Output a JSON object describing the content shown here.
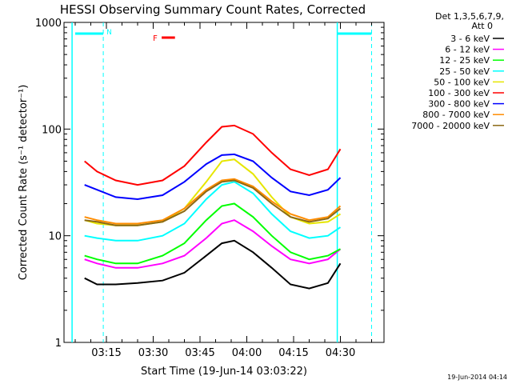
{
  "colors": {
    "background": "#ffffff",
    "axis": "#000000",
    "cyan": "#00ffff"
  },
  "chart_data": {
    "type": "line",
    "title": "HESSI Observing Summary Count Rates, Corrected",
    "xlabel": "Start Time (19-Jun-14 03:03:22)",
    "ylabel": "Corrected Count Rate (s⁻¹ detector⁻¹)",
    "yscale": "log",
    "ylim": [
      1,
      1000
    ],
    "xlim_minutes": [
      3.05,
      4.74
    ],
    "x_unit": "time of day (h:mm, expressed in minutes from 03:03:22 for data)",
    "x_ticks": [
      "03:15",
      "03:30",
      "03:45",
      "04:00",
      "04:15",
      "04:30"
    ],
    "y_ticks": [
      "1",
      "10",
      "100",
      "1000"
    ],
    "legend_header": [
      "Det 1,3,5,6,7,9,",
      "Att 0"
    ],
    "legend_position": "right",
    "timestamp": "19-Jun-2014 04:14",
    "markers": {
      "night_label": "N",
      "flare_label": "F",
      "night_bars": [
        {
          "start": "03:05",
          "end": "03:14",
          "dashed_at": "03:14"
        },
        {
          "start": "04:29",
          "end": "04:40",
          "dashed_at": "04:40"
        }
      ],
      "solid_boundaries": [
        "03:04",
        "04:29"
      ],
      "flare_marker": {
        "start": "03:34",
        "end": "03:38"
      }
    },
    "series": [
      {
        "name": "3 - 6 keV",
        "color": "#000000",
        "x": [
          "03:08",
          "03:12",
          "03:18",
          "03:25",
          "03:33",
          "03:40",
          "03:47",
          "03:52",
          "03:56",
          "04:02",
          "04:08",
          "04:14",
          "04:20",
          "04:26",
          "04:30"
        ],
        "values": [
          4,
          3.5,
          3.5,
          3.6,
          3.8,
          4.5,
          6.5,
          8.5,
          9,
          7,
          5,
          3.5,
          3.2,
          3.6,
          5.5
        ]
      },
      {
        "name": "6 - 12 keV",
        "color": "#ff00ff",
        "x": [
          "03:08",
          "03:12",
          "03:18",
          "03:25",
          "03:33",
          "03:40",
          "03:47",
          "03:52",
          "03:56",
          "04:02",
          "04:08",
          "04:14",
          "04:20",
          "04:26",
          "04:30"
        ],
        "values": [
          6,
          5.5,
          5,
          5,
          5.5,
          6.5,
          9.5,
          13,
          14,
          11,
          8,
          6,
          5.5,
          6,
          7.5
        ]
      },
      {
        "name": "12 - 25 keV",
        "color": "#00ff00",
        "x": [
          "03:08",
          "03:12",
          "03:18",
          "03:25",
          "03:33",
          "03:40",
          "03:47",
          "03:52",
          "03:56",
          "04:02",
          "04:08",
          "04:14",
          "04:20",
          "04:26",
          "04:30"
        ],
        "values": [
          6.5,
          6,
          5.5,
          5.5,
          6.5,
          8.5,
          14,
          19,
          20,
          15,
          10,
          7,
          6,
          6.5,
          7.5
        ]
      },
      {
        "name": "25 - 50 keV",
        "color": "#00ffff",
        "x": [
          "03:08",
          "03:12",
          "03:18",
          "03:25",
          "03:33",
          "03:40",
          "03:47",
          "03:52",
          "03:56",
          "04:02",
          "04:08",
          "04:14",
          "04:20",
          "04:26",
          "04:30"
        ],
        "values": [
          10,
          9.5,
          9,
          9,
          10,
          13,
          22,
          30,
          32,
          25,
          16,
          11,
          9.5,
          10,
          12
        ]
      },
      {
        "name": "50 - 100 keV",
        "color": "#e6e600",
        "x": [
          "03:08",
          "03:12",
          "03:18",
          "03:25",
          "03:33",
          "03:40",
          "03:47",
          "03:52",
          "03:56",
          "04:02",
          "04:08",
          "04:14",
          "04:20",
          "04:26",
          "04:30"
        ],
        "values": [
          14,
          13,
          12.5,
          12.5,
          13.5,
          18,
          32,
          50,
          52,
          38,
          23,
          15,
          13,
          13.5,
          16
        ]
      },
      {
        "name": "100 - 300 keV",
        "color": "#ff0000",
        "x": [
          "03:08",
          "03:12",
          "03:18",
          "03:25",
          "03:33",
          "03:40",
          "03:47",
          "03:52",
          "03:56",
          "04:02",
          "04:08",
          "04:14",
          "04:20",
          "04:26",
          "04:30"
        ],
        "values": [
          50,
          40,
          33,
          30,
          33,
          45,
          75,
          105,
          108,
          90,
          60,
          42,
          37,
          42,
          65
        ]
      },
      {
        "name": "300 - 800 keV",
        "color": "#0000ff",
        "x": [
          "03:08",
          "03:12",
          "03:18",
          "03:25",
          "03:33",
          "03:40",
          "03:47",
          "03:52",
          "03:56",
          "04:02",
          "04:08",
          "04:14",
          "04:20",
          "04:26",
          "04:30"
        ],
        "values": [
          30,
          27,
          23,
          22,
          24,
          32,
          47,
          57,
          58,
          50,
          35,
          26,
          24,
          27,
          35
        ]
      },
      {
        "name": "800 - 7000 keV",
        "color": "#ff8c00",
        "x": [
          "03:08",
          "03:12",
          "03:18",
          "03:25",
          "03:33",
          "03:40",
          "03:47",
          "03:52",
          "03:56",
          "04:02",
          "04:08",
          "04:14",
          "04:20",
          "04:26",
          "04:30"
        ],
        "values": [
          15,
          14,
          13,
          13,
          14,
          18,
          27,
          33,
          34,
          29,
          21,
          16,
          14,
          15,
          19
        ]
      },
      {
        "name": "7000 - 20000 keV",
        "color": "#8b6914",
        "x": [
          "03:08",
          "03:12",
          "03:18",
          "03:25",
          "03:33",
          "03:40",
          "03:47",
          "03:52",
          "03:56",
          "04:02",
          "04:08",
          "04:14",
          "04:20",
          "04:26",
          "04:30"
        ],
        "values": [
          14,
          13.5,
          12.5,
          12.5,
          13.5,
          17,
          26,
          32,
          33,
          28,
          20,
          15,
          13.5,
          14.5,
          18
        ]
      }
    ]
  }
}
